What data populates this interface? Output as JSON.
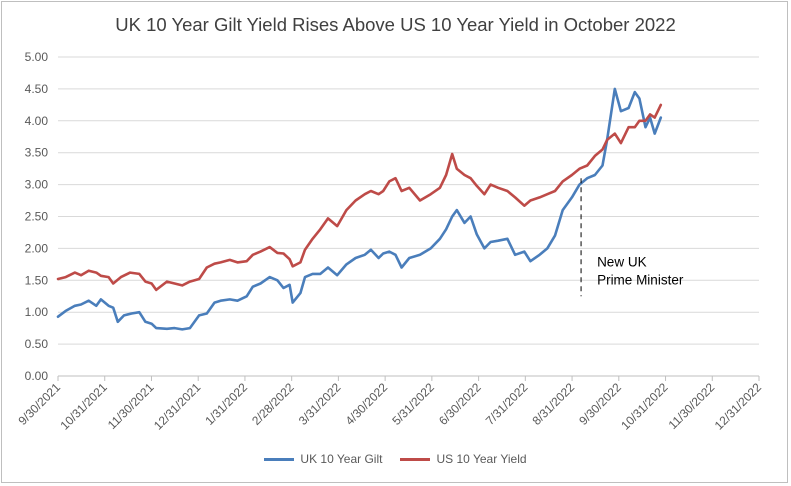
{
  "chart_data": {
    "type": "line",
    "title": "UK 10 Year Gilt Yield Rises Above US 10 Year Yield in October 2022",
    "xlabel": "",
    "ylabel": "",
    "ylim": [
      0,
      5
    ],
    "y_ticks": [
      "0.00",
      "0.50",
      "1.00",
      "1.50",
      "2.00",
      "2.50",
      "3.00",
      "3.50",
      "4.00",
      "4.50",
      "5.00"
    ],
    "x_ticks": [
      "9/30/2021",
      "10/31/2021",
      "11/30/2021",
      "12/31/2021",
      "1/31/2022",
      "2/28/2022",
      "3/31/2022",
      "4/30/2022",
      "5/31/2022",
      "6/30/2022",
      "7/31/2022",
      "8/31/2022",
      "9/30/2022",
      "10/31/2022",
      "11/30/2022",
      "12/31/2022"
    ],
    "grid": "horizontal",
    "legend_position": "bottom",
    "annotation": {
      "date": "2022-09-06",
      "y_top": 3.1,
      "y_bottom": 1.25,
      "label_lines": [
        "New UK",
        "Prime Minister"
      ]
    },
    "series": [
      {
        "name": "UK 10 Year Gilt",
        "color": "#4a7ebb",
        "points": [
          [
            "2021-09-30",
            0.93
          ],
          [
            "2021-10-05",
            1.02
          ],
          [
            "2021-10-11",
            1.1
          ],
          [
            "2021-10-15",
            1.12
          ],
          [
            "2021-10-20",
            1.18
          ],
          [
            "2021-10-25",
            1.1
          ],
          [
            "2021-10-28",
            1.2
          ],
          [
            "2021-11-02",
            1.1
          ],
          [
            "2021-11-05",
            1.07
          ],
          [
            "2021-11-08",
            0.85
          ],
          [
            "2021-11-12",
            0.95
          ],
          [
            "2021-11-17",
            0.98
          ],
          [
            "2021-11-22",
            1.0
          ],
          [
            "2021-11-26",
            0.85
          ],
          [
            "2021-11-30",
            0.82
          ],
          [
            "2021-12-03",
            0.75
          ],
          [
            "2021-12-10",
            0.74
          ],
          [
            "2021-12-15",
            0.75
          ],
          [
            "2021-12-20",
            0.73
          ],
          [
            "2021-12-25",
            0.75
          ],
          [
            "2021-12-31",
            0.95
          ],
          [
            "2022-01-05",
            0.98
          ],
          [
            "2022-01-10",
            1.15
          ],
          [
            "2022-01-14",
            1.18
          ],
          [
            "2022-01-20",
            1.2
          ],
          [
            "2022-01-25",
            1.18
          ],
          [
            "2022-01-31",
            1.25
          ],
          [
            "2022-02-04",
            1.4
          ],
          [
            "2022-02-09",
            1.45
          ],
          [
            "2022-02-15",
            1.55
          ],
          [
            "2022-02-20",
            1.5
          ],
          [
            "2022-02-24",
            1.38
          ],
          [
            "2022-02-28",
            1.43
          ],
          [
            "2022-03-02",
            1.15
          ],
          [
            "2022-03-07",
            1.3
          ],
          [
            "2022-03-10",
            1.55
          ],
          [
            "2022-03-15",
            1.6
          ],
          [
            "2022-03-20",
            1.6
          ],
          [
            "2022-03-25",
            1.7
          ],
          [
            "2022-03-31",
            1.58
          ],
          [
            "2022-04-06",
            1.75
          ],
          [
            "2022-04-12",
            1.85
          ],
          [
            "2022-04-18",
            1.9
          ],
          [
            "2022-04-22",
            1.98
          ],
          [
            "2022-04-27",
            1.85
          ],
          [
            "2022-04-30",
            1.92
          ],
          [
            "2022-05-04",
            1.95
          ],
          [
            "2022-05-08",
            1.9
          ],
          [
            "2022-05-12",
            1.7
          ],
          [
            "2022-05-17",
            1.85
          ],
          [
            "2022-05-24",
            1.9
          ],
          [
            "2022-05-31",
            2.0
          ],
          [
            "2022-06-06",
            2.15
          ],
          [
            "2022-06-10",
            2.3
          ],
          [
            "2022-06-14",
            2.5
          ],
          [
            "2022-06-17",
            2.6
          ],
          [
            "2022-06-22",
            2.4
          ],
          [
            "2022-06-26",
            2.5
          ],
          [
            "2022-06-30",
            2.22
          ],
          [
            "2022-07-05",
            2.0
          ],
          [
            "2022-07-09",
            2.1
          ],
          [
            "2022-07-14",
            2.12
          ],
          [
            "2022-07-20",
            2.15
          ],
          [
            "2022-07-25",
            1.9
          ],
          [
            "2022-07-31",
            1.95
          ],
          [
            "2022-08-04",
            1.8
          ],
          [
            "2022-08-10",
            1.9
          ],
          [
            "2022-08-15",
            2.0
          ],
          [
            "2022-08-20",
            2.2
          ],
          [
            "2022-08-25",
            2.6
          ],
          [
            "2022-08-31",
            2.8
          ],
          [
            "2022-09-05",
            3.0
          ],
          [
            "2022-09-10",
            3.1
          ],
          [
            "2022-09-15",
            3.15
          ],
          [
            "2022-09-20",
            3.3
          ],
          [
            "2022-09-23",
            3.7
          ],
          [
            "2022-09-28",
            4.5
          ],
          [
            "2022-10-02",
            4.15
          ],
          [
            "2022-10-07",
            4.2
          ],
          [
            "2022-10-11",
            4.45
          ],
          [
            "2022-10-14",
            4.35
          ],
          [
            "2022-10-18",
            3.9
          ],
          [
            "2022-10-21",
            4.05
          ],
          [
            "2022-10-24",
            3.8
          ],
          [
            "2022-10-28",
            4.05
          ]
        ]
      },
      {
        "name": "US 10 Year Yield",
        "color": "#be4b48",
        "points": [
          [
            "2021-09-30",
            1.52
          ],
          [
            "2021-10-05",
            1.55
          ],
          [
            "2021-10-11",
            1.62
          ],
          [
            "2021-10-15",
            1.58
          ],
          [
            "2021-10-20",
            1.65
          ],
          [
            "2021-10-25",
            1.62
          ],
          [
            "2021-10-28",
            1.57
          ],
          [
            "2021-11-02",
            1.55
          ],
          [
            "2021-11-05",
            1.45
          ],
          [
            "2021-11-10",
            1.55
          ],
          [
            "2021-11-16",
            1.62
          ],
          [
            "2021-11-22",
            1.6
          ],
          [
            "2021-11-26",
            1.48
          ],
          [
            "2021-11-30",
            1.45
          ],
          [
            "2021-12-03",
            1.35
          ],
          [
            "2021-12-10",
            1.48
          ],
          [
            "2021-12-15",
            1.45
          ],
          [
            "2021-12-20",
            1.42
          ],
          [
            "2021-12-25",
            1.48
          ],
          [
            "2021-12-31",
            1.52
          ],
          [
            "2022-01-05",
            1.7
          ],
          [
            "2022-01-10",
            1.76
          ],
          [
            "2022-01-14",
            1.78
          ],
          [
            "2022-01-20",
            1.82
          ],
          [
            "2022-01-25",
            1.78
          ],
          [
            "2022-01-31",
            1.8
          ],
          [
            "2022-02-04",
            1.9
          ],
          [
            "2022-02-09",
            1.95
          ],
          [
            "2022-02-15",
            2.02
          ],
          [
            "2022-02-20",
            1.93
          ],
          [
            "2022-02-24",
            1.92
          ],
          [
            "2022-02-28",
            1.83
          ],
          [
            "2022-03-02",
            1.72
          ],
          [
            "2022-03-07",
            1.78
          ],
          [
            "2022-03-10",
            1.98
          ],
          [
            "2022-03-15",
            2.15
          ],
          [
            "2022-03-20",
            2.3
          ],
          [
            "2022-03-25",
            2.47
          ],
          [
            "2022-03-31",
            2.35
          ],
          [
            "2022-04-06",
            2.6
          ],
          [
            "2022-04-12",
            2.75
          ],
          [
            "2022-04-18",
            2.85
          ],
          [
            "2022-04-22",
            2.9
          ],
          [
            "2022-04-27",
            2.85
          ],
          [
            "2022-04-30",
            2.9
          ],
          [
            "2022-05-04",
            3.05
          ],
          [
            "2022-05-08",
            3.1
          ],
          [
            "2022-05-12",
            2.9
          ],
          [
            "2022-05-17",
            2.95
          ],
          [
            "2022-05-24",
            2.75
          ],
          [
            "2022-05-31",
            2.85
          ],
          [
            "2022-06-06",
            2.95
          ],
          [
            "2022-06-10",
            3.15
          ],
          [
            "2022-06-14",
            3.48
          ],
          [
            "2022-06-17",
            3.25
          ],
          [
            "2022-06-22",
            3.15
          ],
          [
            "2022-06-26",
            3.1
          ],
          [
            "2022-06-30",
            2.98
          ],
          [
            "2022-07-05",
            2.85
          ],
          [
            "2022-07-09",
            3.0
          ],
          [
            "2022-07-14",
            2.95
          ],
          [
            "2022-07-20",
            2.9
          ],
          [
            "2022-07-25",
            2.8
          ],
          [
            "2022-07-31",
            2.67
          ],
          [
            "2022-08-04",
            2.75
          ],
          [
            "2022-08-10",
            2.8
          ],
          [
            "2022-08-15",
            2.85
          ],
          [
            "2022-08-20",
            2.9
          ],
          [
            "2022-08-25",
            3.05
          ],
          [
            "2022-08-31",
            3.15
          ],
          [
            "2022-09-05",
            3.25
          ],
          [
            "2022-09-10",
            3.3
          ],
          [
            "2022-09-15",
            3.45
          ],
          [
            "2022-09-20",
            3.55
          ],
          [
            "2022-09-23",
            3.7
          ],
          [
            "2022-09-28",
            3.8
          ],
          [
            "2022-10-02",
            3.65
          ],
          [
            "2022-10-07",
            3.9
          ],
          [
            "2022-10-11",
            3.9
          ],
          [
            "2022-10-14",
            4.0
          ],
          [
            "2022-10-18",
            4.0
          ],
          [
            "2022-10-21",
            4.1
          ],
          [
            "2022-10-24",
            4.05
          ],
          [
            "2022-10-28",
            4.25
          ]
        ]
      }
    ]
  }
}
